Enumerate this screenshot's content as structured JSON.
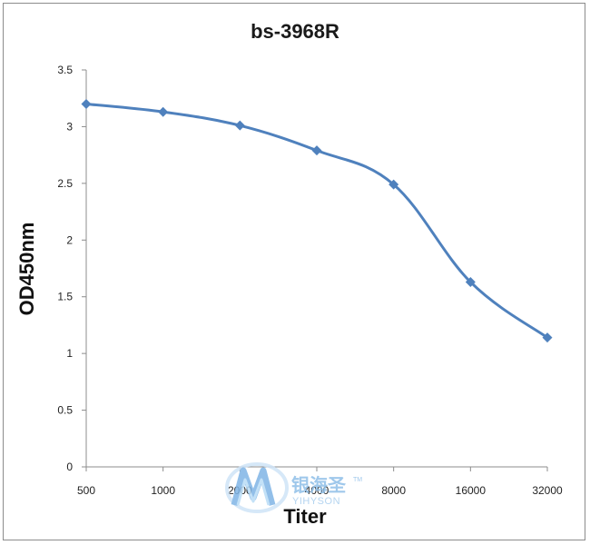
{
  "chart_data": {
    "type": "line",
    "title": "bs-3968R",
    "xlabel": "Titer",
    "ylabel": "OD450nm",
    "categories": [
      "500",
      "1000",
      "2000",
      "4000",
      "8000",
      "16000",
      "32000"
    ],
    "series": [
      {
        "values": [
          3.2,
          3.13,
          3.01,
          2.79,
          2.49,
          1.63,
          1.14
        ]
      }
    ],
    "ylim": [
      0,
      3.5
    ],
    "yticks": [
      "0",
      "0.5",
      "1",
      "1.5",
      "2",
      "2.5",
      "3",
      "3.5"
    ],
    "grid": false,
    "legend": "none",
    "series_color": "#4f81bd"
  },
  "watermark": {
    "cn": "银海圣",
    "en": "YIHYSON",
    "tm": "TM"
  }
}
